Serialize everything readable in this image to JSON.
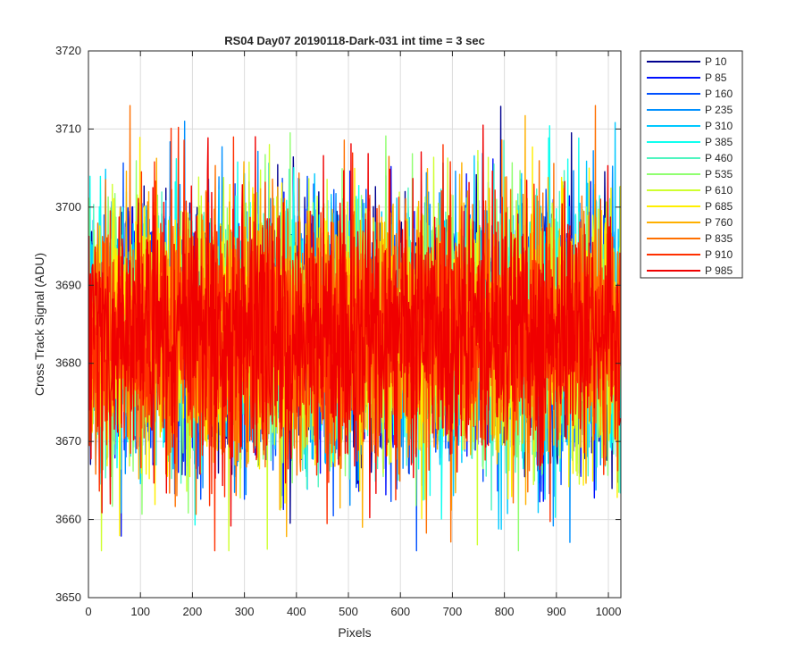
{
  "chart_data": {
    "type": "line",
    "title": "RS04 Day07 20190118-Dark-031 int time = 3 sec",
    "xlabel": "Pixels",
    "ylabel": "Cross Track Signal (ADU)",
    "xlim": [
      0,
      1024
    ],
    "ylim": [
      3650,
      3720
    ],
    "xticks": [
      0,
      100,
      200,
      300,
      400,
      500,
      600,
      700,
      800,
      900,
      1000
    ],
    "yticks": [
      3650,
      3660,
      3670,
      3680,
      3690,
      3700,
      3710,
      3720
    ],
    "grid": true,
    "legend_position": "outside-top-right",
    "noise_model": {
      "points_per_series": 1024,
      "mean": 3684,
      "std": 8,
      "min": 3656,
      "max": 3713
    },
    "series": [
      {
        "name": "P 10",
        "color": "#00008f"
      },
      {
        "name": "P 85",
        "color": "#0010ff"
      },
      {
        "name": "P 160",
        "color": "#0050ff"
      },
      {
        "name": "P 235",
        "color": "#0090ff"
      },
      {
        "name": "P 310",
        "color": "#00c8ff"
      },
      {
        "name": "P 385",
        "color": "#10ffef"
      },
      {
        "name": "P 460",
        "color": "#50f5c0"
      },
      {
        "name": "P 535",
        "color": "#90ff70"
      },
      {
        "name": "P 610",
        "color": "#cfff30"
      },
      {
        "name": "P 685",
        "color": "#ffef00"
      },
      {
        "name": "P 760",
        "color": "#ffb000"
      },
      {
        "name": "P 835",
        "color": "#ff7000"
      },
      {
        "name": "P 910",
        "color": "#ff3000"
      },
      {
        "name": "P 985",
        "color": "#f00000"
      }
    ]
  }
}
